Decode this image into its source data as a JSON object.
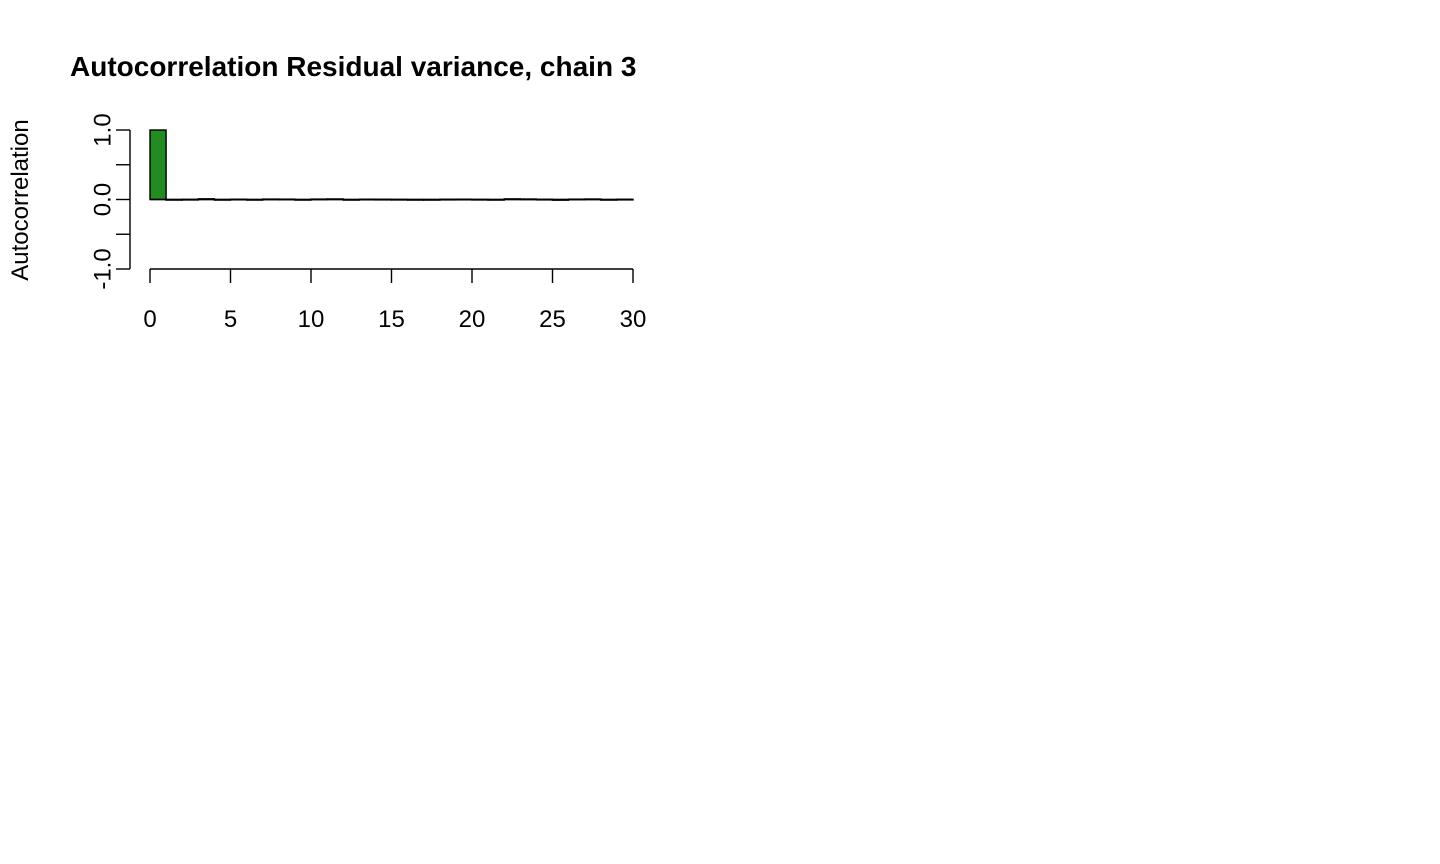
{
  "chart_data": {
    "type": "bar",
    "title": "Autocorrelation Residual variance, chain 3",
    "xlabel": "",
    "ylabel": "Autocorrelation",
    "xlim": [
      0,
      30
    ],
    "ylim": [
      -1,
      1
    ],
    "x_ticks": [
      0,
      5,
      10,
      15,
      20,
      25,
      30
    ],
    "x_tick_labels": [
      "0",
      "5",
      "10",
      "15",
      "20",
      "25",
      "30"
    ],
    "y_ticks": [
      -1,
      -0.5,
      0,
      0.5,
      1
    ],
    "y_tick_labels": [
      "-1.0",
      "",
      "0.0",
      "",
      "1.0"
    ],
    "grid": false,
    "legend": "none",
    "bar_color": "#228B22",
    "lags": [
      0,
      1,
      2,
      3,
      4,
      5,
      6,
      7,
      8,
      9,
      10,
      11,
      12,
      13,
      14,
      15,
      16,
      17,
      18,
      19,
      20,
      21,
      22,
      23,
      24,
      25,
      26,
      27,
      28,
      29
    ],
    "values": [
      1.0,
      -0.003,
      0.002,
      0.01,
      -0.006,
      0.004,
      -0.008,
      0.006,
      0.005,
      -0.007,
      0.006,
      0.008,
      -0.005,
      0.004,
      0.003,
      0.002,
      -0.003,
      -0.002,
      0.003,
      0.004,
      0.002,
      -0.004,
      0.009,
      0.007,
      0.003,
      -0.01,
      0.005,
      0.007,
      -0.004,
      0.003
    ]
  }
}
